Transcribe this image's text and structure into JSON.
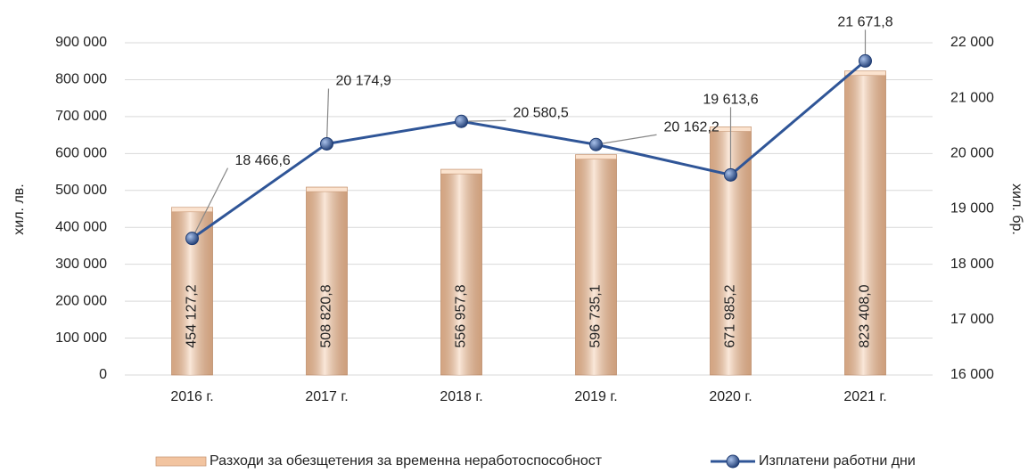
{
  "chart_data": {
    "type": "bar",
    "categories": [
      "2016 г.",
      "2017 г.",
      "2018 г.",
      "2019 г.",
      "2020 г.",
      "2021 г."
    ],
    "ylabel": "хил. лв.",
    "y2label": "хил. бр.",
    "ylim": [
      0,
      900000
    ],
    "yticks": [
      0,
      {
        "value": 100000,
        "label": "100 000"
      },
      {
        "value": 200000,
        "label": "200 000"
      },
      {
        "value": 300000,
        "label": "300 000"
      },
      {
        "value": 400000,
        "label": "400 000"
      },
      {
        "value": 500000,
        "label": "500 000"
      },
      {
        "value": 600000,
        "label": "600 000"
      },
      {
        "value": 700000,
        "label": "700 000"
      },
      {
        "value": 800000,
        "label": "800 000"
      },
      {
        "value": 900000,
        "label": "900 000"
      }
    ],
    "y2lim": [
      16000,
      22000
    ],
    "y2ticks": [
      {
        "value": 16000,
        "label": "16 000"
      },
      {
        "value": 17000,
        "label": "17 000"
      },
      {
        "value": 18000,
        "label": "18 000"
      },
      {
        "value": 19000,
        "label": "19 000"
      },
      {
        "value": 20000,
        "label": "20 000"
      },
      {
        "value": 21000,
        "label": "21 000"
      },
      {
        "value": 22000,
        "label": "22 000"
      }
    ],
    "grid": true,
    "legend": "bottom",
    "series": [
      {
        "name": "Разходи за обезщетения за временна неработоспособност",
        "type": "bar",
        "color": "#f2c4a0",
        "values": [
          454127.2,
          508820.8,
          556957.8,
          596735.1,
          671985.2,
          823408.0
        ],
        "value_labels": [
          "454 127,2",
          "508 820,8",
          "556 957,8",
          "596 735,1",
          "671 985,2",
          "823 408,0"
        ]
      },
      {
        "name": "Изплатени работни дни",
        "type": "line",
        "axis": "y2",
        "color": "#2f5597",
        "values": [
          18466.6,
          20174.9,
          20580.5,
          20162.2,
          19613.6,
          21671.8
        ],
        "value_labels": [
          "18 466,6",
          "20 174,9",
          "20 580,5",
          "20 162,2",
          "19 613,6",
          "21 671,8"
        ]
      }
    ]
  }
}
